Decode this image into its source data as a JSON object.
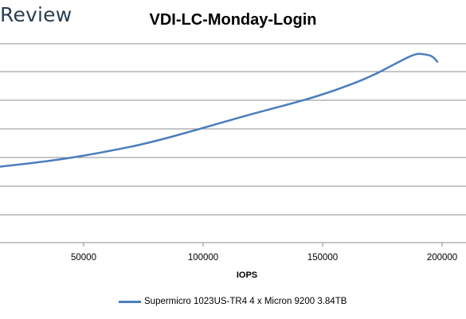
{
  "header": {
    "brand": "Review"
  },
  "chart_data": {
    "type": "line",
    "title": "VDI-LC-Monday-Login",
    "xlabel": "IOPS",
    "ylabel": "",
    "xlim": [
      15000,
      210000
    ],
    "ylim": [
      0,
      10
    ],
    "x_ticks": [
      50000,
      100000,
      150000,
      200000
    ],
    "x_tick_labels": [
      "50000",
      "100000",
      "150000",
      "200000"
    ],
    "y_gridlines": [
      1,
      2,
      3,
      4,
      5,
      6,
      7
    ],
    "grid": true,
    "legend_position": "bottom",
    "colors": {
      "series": "#4a7ebb",
      "grid": "#8c8c8c"
    },
    "series": [
      {
        "name": "Supermicro 1023US-TR4 4 x Micron 9200 3.84TB",
        "x": [
          15000,
          40000,
          60000,
          77000,
          100000,
          120000,
          140000,
          155000,
          170000,
          182000,
          189000,
          193000,
          196000,
          198000
        ],
        "y": [
          2.75,
          3.0,
          3.3,
          3.6,
          4.15,
          4.65,
          5.1,
          5.5,
          6.0,
          6.55,
          6.85,
          6.82,
          6.75,
          6.55
        ]
      }
    ]
  }
}
